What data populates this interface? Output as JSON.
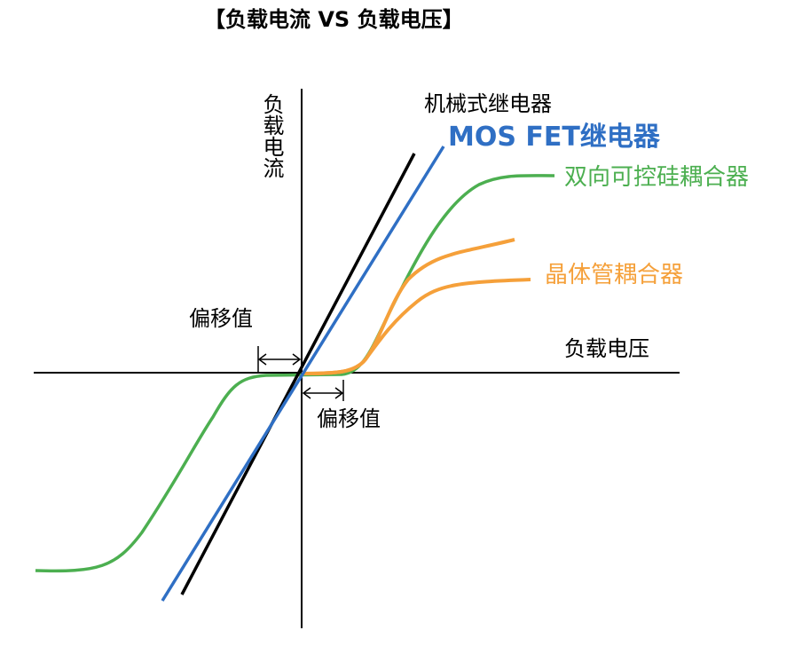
{
  "title": "【负载电流 VS 负载电压】",
  "axes": {
    "y_label": "负载电流",
    "x_label": "负载电压"
  },
  "offset_label_left": "偏移值",
  "offset_label_right": "偏移值",
  "legend": {
    "mechanical": {
      "label": "机械式继电器",
      "color": "#000000"
    },
    "mosfet": {
      "label": "MOS FET继电器",
      "color": "#2f6fc4"
    },
    "triac": {
      "label": "双向可控硅耦合器",
      "color": "#4caf50"
    },
    "transistor": {
      "label": "晶体管耦合器",
      "color": "#f5a03a"
    }
  }
}
